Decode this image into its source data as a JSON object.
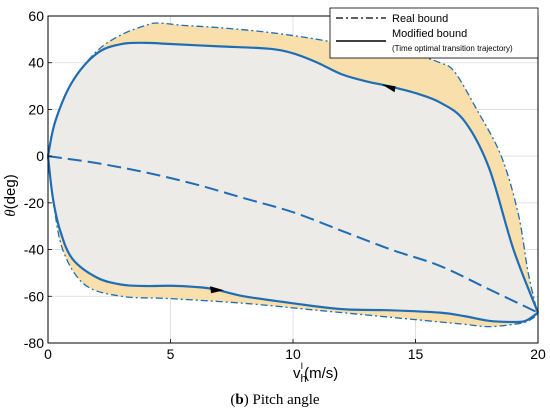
{
  "chart_data": {
    "type": "line",
    "title": "",
    "ylabel_symbol": "θ",
    "ylabel_unit": "(deg)",
    "xlabel_main": "v",
    "xlabel_sub": "h",
    "xlabel_sup": "I",
    "xlabel_unit": "(m/s)",
    "xlim": [
      0,
      20
    ],
    "ylim": [
      -80,
      60
    ],
    "xticks": [
      0,
      5,
      10,
      15,
      20
    ],
    "yticks": [
      -80,
      -60,
      -40,
      -20,
      0,
      20,
      40,
      60
    ],
    "grid": true,
    "legend_position": "top-right",
    "legend": {
      "real": "Real bound",
      "modified": "Modified bound",
      "modified_note": "(Time optimal transition trajectory)"
    },
    "colors": {
      "line": "#1f6db5",
      "fill_outer": "#f8dfab",
      "fill_inner": "#ebebeb",
      "grid": "#d9d9d9"
    },
    "real_bound_upper": {
      "x": [
        0,
        0.3,
        1,
        2,
        3,
        4,
        4.5,
        5.5,
        7,
        9,
        11,
        13,
        15,
        16,
        16.6,
        17.5,
        18.5,
        19.2,
        19.6,
        20
      ],
      "y": [
        0,
        15,
        32,
        45,
        52,
        56,
        57,
        56,
        55,
        53,
        50,
        46,
        43,
        40,
        36,
        20,
        0,
        -25,
        -50,
        -68
      ]
    },
    "real_bound_lower": {
      "x": [
        0,
        0.2,
        0.6,
        1.5,
        3,
        5,
        8,
        11,
        14,
        16,
        17,
        18,
        19,
        19.5,
        20
      ],
      "y": [
        0,
        -18,
        -40,
        -55,
        -60,
        -61,
        -63,
        -66,
        -69,
        -71,
        -72,
        -73,
        -72,
        -71,
        -68
      ]
    },
    "modified_upper": {
      "x": [
        0,
        0.3,
        1,
        2,
        3,
        4,
        5,
        7,
        9,
        10,
        11,
        12,
        13,
        13.9,
        15,
        16,
        17,
        18,
        19,
        20
      ],
      "y": [
        0,
        15,
        32,
        44,
        48,
        48.5,
        48,
        47,
        46,
        44,
        40,
        35,
        32,
        30,
        27,
        23,
        15,
        -5,
        -40,
        -67
      ]
    },
    "modified_lower": {
      "x": [
        0,
        0.2,
        0.5,
        1,
        2,
        3,
        4,
        5,
        6,
        6.8,
        8,
        10,
        12,
        14,
        16,
        17,
        18,
        19,
        19.5,
        20
      ],
      "y": [
        0,
        -18,
        -32,
        -44,
        -52,
        -55,
        -55.6,
        -55.5,
        -56,
        -57,
        -60,
        -63,
        -65.5,
        -66,
        -67,
        -68.5,
        -70.5,
        -71,
        -70.5,
        -67
      ]
    },
    "dashed_transition": {
      "x": [
        0,
        2,
        4,
        6,
        8,
        10,
        12,
        14,
        16,
        18,
        20
      ],
      "y": [
        0,
        -3,
        -7,
        -12,
        -18,
        -24,
        -32,
        -40,
        -47,
        -57,
        -67
      ]
    },
    "arrow_upper": {
      "x": 13.9,
      "y": 29.5
    },
    "arrow_lower": {
      "x": 6.9,
      "y": -57
    }
  },
  "caption": {
    "label": "b",
    "text": "Pitch angle"
  }
}
